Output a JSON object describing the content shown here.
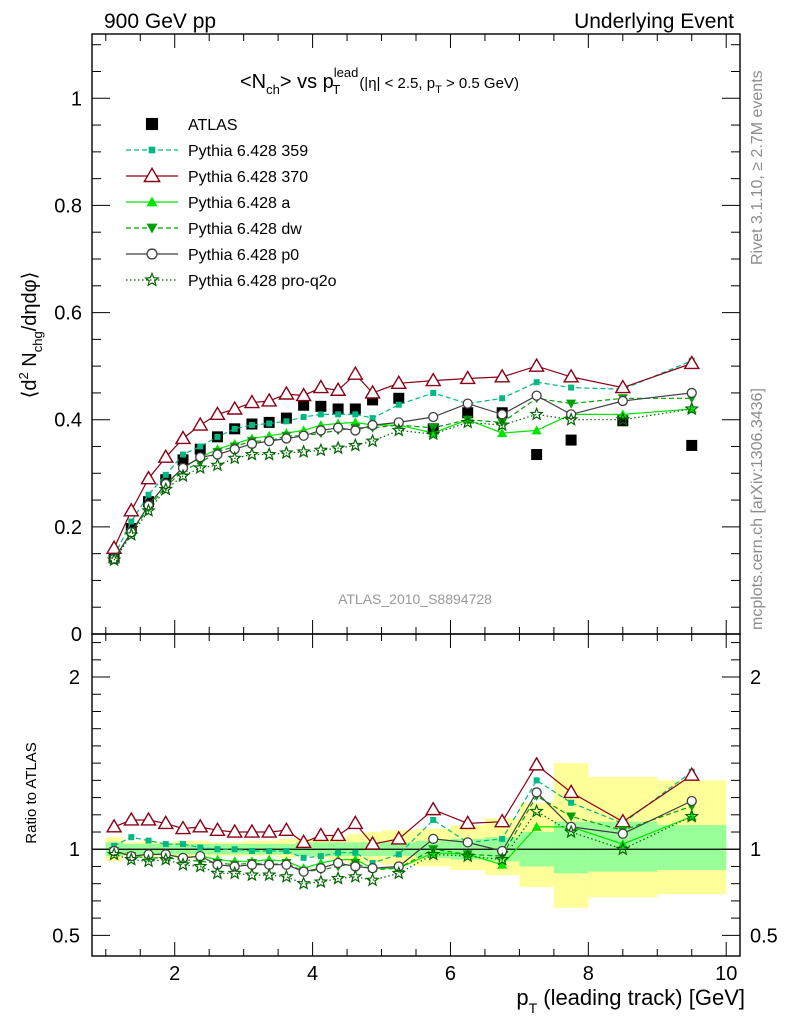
{
  "header": {
    "left": "900 GeV pp",
    "right": "Underlying Event",
    "side_top": "Rivet 3.1.10, ≥ 2.7M events",
    "side_bottom": "mcplots.cern.ch [arXiv:1306.3436]"
  },
  "main": {
    "title_lhs": "<N",
    "title_ch": "ch",
    "title_vs": "> vs p",
    "title_sup": "lead",
    "title_T": "T",
    "title_cut1": "(|η| < 2.5, p",
    "title_cutT": "T",
    "title_cut2": " > 0.5 GeV)",
    "ylabel_pre": "⟨d",
    "ylabel_sup": "2",
    "ylabel_mid": " N",
    "ylabel_sub": "chg",
    "ylabel_post": "/dηdφ⟩",
    "watermark": "ATLAS_2010_S8894728"
  },
  "ratio": {
    "ylabel": "Ratio to ATLAS"
  },
  "xaxis": {
    "label_p": "p",
    "label_T": "T",
    "label_rest": " (leading track) [GeV]"
  },
  "chart_data": [
    {
      "type": "scatter",
      "panel": "main",
      "xlim": [
        0.8,
        10.2
      ],
      "ylim": [
        0,
        1.12
      ],
      "yticks": [
        0,
        0.2,
        0.4,
        0.6,
        0.8,
        1
      ],
      "ytick_labels": [
        "0",
        "0.2",
        "0.4",
        "0.6",
        "0.8",
        "1"
      ],
      "xticks": [
        2,
        4,
        6,
        8,
        10
      ],
      "xtick_labels": [
        "2",
        "4",
        "6",
        "8",
        "10"
      ],
      "x": [
        1.12,
        1.37,
        1.62,
        1.87,
        2.12,
        2.37,
        2.62,
        2.87,
        3.12,
        3.37,
        3.62,
        3.87,
        4.12,
        4.37,
        4.62,
        4.87,
        5.25,
        5.75,
        6.25,
        6.75,
        7.25,
        7.75,
        8.5,
        9.5
      ],
      "legend_position": "top-left",
      "series": [
        {
          "name": "ATLAS",
          "color": "#000000",
          "marker": "square",
          "line": "none",
          "values": [
            0.142,
            0.197,
            0.247,
            0.288,
            0.325,
            0.345,
            0.368,
            0.383,
            0.392,
            0.395,
            0.403,
            0.427,
            0.425,
            0.42,
            0.42,
            0.437,
            0.44,
            0.383,
            0.413,
            0.413,
            0.335,
            0.362,
            0.398,
            0.352
          ]
        },
        {
          "name": "Pythia 6.428 359",
          "color": "#00b982",
          "marker": "square-small",
          "line": "dashed",
          "values": [
            0.145,
            0.21,
            0.26,
            0.297,
            0.335,
            0.35,
            0.368,
            0.383,
            0.39,
            0.393,
            0.397,
            0.405,
            0.41,
            0.41,
            0.41,
            0.403,
            0.428,
            0.45,
            0.43,
            0.44,
            0.47,
            0.46,
            0.457,
            0.51
          ]
        },
        {
          "name": "Pythia 6.428 370",
          "color": "#8b0016",
          "marker": "triangle-open",
          "line": "solid",
          "values": [
            0.16,
            0.23,
            0.29,
            0.33,
            0.365,
            0.39,
            0.41,
            0.42,
            0.432,
            0.435,
            0.448,
            0.445,
            0.46,
            0.455,
            0.485,
            0.45,
            0.468,
            0.473,
            0.477,
            0.48,
            0.5,
            0.48,
            0.46,
            0.505
          ]
        },
        {
          "name": "Pythia 6.428 a",
          "color": "#00e600",
          "marker": "triangle",
          "line": "solid",
          "values": [
            0.14,
            0.19,
            0.24,
            0.28,
            0.31,
            0.33,
            0.345,
            0.355,
            0.365,
            0.37,
            0.375,
            0.38,
            0.39,
            0.393,
            0.395,
            0.39,
            0.39,
            0.375,
            0.4,
            0.375,
            0.38,
            0.41,
            0.41,
            0.42
          ]
        },
        {
          "name": "Pythia 6.428 dw",
          "color": "#00a000",
          "marker": "triangle-down",
          "line": "dashed",
          "values": [
            0.14,
            0.19,
            0.235,
            0.275,
            0.305,
            0.32,
            0.34,
            0.35,
            0.36,
            0.36,
            0.37,
            0.37,
            0.375,
            0.38,
            0.385,
            0.385,
            0.39,
            0.385,
            0.4,
            0.395,
            0.44,
            0.43,
            0.44,
            0.44
          ]
        },
        {
          "name": "Pythia 6.428 p0",
          "color": "#404040",
          "marker": "circle-open",
          "line": "solid",
          "values": [
            0.14,
            0.19,
            0.24,
            0.28,
            0.31,
            0.33,
            0.335,
            0.345,
            0.355,
            0.36,
            0.365,
            0.37,
            0.38,
            0.385,
            0.38,
            0.39,
            0.395,
            0.405,
            0.43,
            0.41,
            0.445,
            0.41,
            0.435,
            0.45
          ]
        },
        {
          "name": "Pythia 6.428 pro-q2o",
          "color": "#006400",
          "marker": "star",
          "line": "dotted",
          "values": [
            0.138,
            0.185,
            0.23,
            0.27,
            0.295,
            0.31,
            0.315,
            0.328,
            0.335,
            0.335,
            0.338,
            0.34,
            0.343,
            0.347,
            0.352,
            0.36,
            0.38,
            0.373,
            0.395,
            0.39,
            0.41,
            0.4,
            0.4,
            0.42
          ]
        }
      ]
    },
    {
      "type": "line",
      "panel": "ratio",
      "xlim": [
        0.8,
        10.2
      ],
      "ylim": [
        0.38,
        2.25
      ],
      "yticks": [
        0.5,
        1,
        2
      ],
      "ytick_labels": [
        "0.5",
        "1",
        "2"
      ],
      "reference_line": 1,
      "band_edges": [
        1.0,
        1.25,
        1.5,
        1.75,
        2.0,
        2.25,
        2.5,
        2.75,
        3.0,
        3.25,
        3.5,
        3.75,
        4.0,
        4.25,
        4.5,
        4.75,
        5.0,
        5.5,
        6.0,
        6.5,
        7.0,
        7.5,
        8.0,
        9.0,
        10.0
      ],
      "band_inner": {
        "color": "#99ff99",
        "lo": [
          0.96,
          0.97,
          0.97,
          0.97,
          0.97,
          0.97,
          0.97,
          0.97,
          0.97,
          0.97,
          0.97,
          0.96,
          0.96,
          0.96,
          0.96,
          0.96,
          0.96,
          0.95,
          0.94,
          0.93,
          0.9,
          0.86,
          0.87,
          0.88
        ],
        "hi": [
          1.04,
          1.03,
          1.03,
          1.03,
          1.03,
          1.03,
          1.03,
          1.03,
          1.03,
          1.03,
          1.03,
          1.04,
          1.04,
          1.04,
          1.04,
          1.04,
          1.04,
          1.05,
          1.06,
          1.07,
          1.1,
          1.16,
          1.16,
          1.14
        ]
      },
      "band_outer": {
        "color": "#ffff99",
        "lo": [
          0.93,
          0.96,
          0.95,
          0.96,
          0.95,
          0.95,
          0.96,
          0.96,
          0.96,
          0.96,
          0.95,
          0.96,
          0.95,
          0.94,
          0.92,
          0.92,
          0.91,
          0.9,
          0.88,
          0.85,
          0.78,
          0.66,
          0.72,
          0.74
        ],
        "hi": [
          1.07,
          1.04,
          1.05,
          1.04,
          1.05,
          1.05,
          1.04,
          1.04,
          1.05,
          1.05,
          1.06,
          1.06,
          1.06,
          1.07,
          1.09,
          1.1,
          1.11,
          1.12,
          1.14,
          1.18,
          1.27,
          1.5,
          1.42,
          1.4
        ]
      },
      "x": [
        1.12,
        1.37,
        1.62,
        1.87,
        2.12,
        2.37,
        2.62,
        2.87,
        3.12,
        3.37,
        3.62,
        3.87,
        4.12,
        4.37,
        4.62,
        4.87,
        5.25,
        5.75,
        6.25,
        6.75,
        7.25,
        7.75,
        8.5,
        9.5
      ],
      "series": [
        {
          "name": "Pythia 6.428 359",
          "color": "#00b982",
          "marker": "square-small",
          "line": "dashed",
          "values": [
            1.02,
            1.07,
            1.05,
            1.03,
            1.03,
            1.01,
            1.0,
            1.0,
            0.99,
            0.99,
            0.99,
            0.95,
            0.96,
            0.98,
            0.98,
            0.92,
            0.97,
            1.17,
            1.04,
            1.06,
            1.4,
            1.27,
            1.15,
            1.45
          ]
        },
        {
          "name": "Pythia 6.428 370",
          "color": "#8b0016",
          "marker": "triangle-open",
          "line": "solid",
          "values": [
            1.13,
            1.17,
            1.17,
            1.15,
            1.12,
            1.13,
            1.11,
            1.1,
            1.1,
            1.1,
            1.11,
            1.04,
            1.08,
            1.08,
            1.15,
            1.03,
            1.06,
            1.23,
            1.15,
            1.16,
            1.49,
            1.33,
            1.16,
            1.43
          ]
        },
        {
          "name": "Pythia 6.428 a",
          "color": "#00e600",
          "marker": "triangle",
          "line": "solid",
          "values": [
            0.99,
            0.96,
            0.97,
            0.97,
            0.95,
            0.96,
            0.94,
            0.93,
            0.93,
            0.94,
            0.93,
            0.89,
            0.92,
            0.94,
            0.94,
            0.89,
            0.89,
            0.98,
            0.97,
            0.91,
            1.13,
            1.13,
            1.03,
            1.19
          ]
        },
        {
          "name": "Pythia 6.428 dw",
          "color": "#00a000",
          "marker": "triangle-down",
          "line": "dashed",
          "values": [
            0.99,
            0.96,
            0.95,
            0.95,
            0.94,
            0.93,
            0.92,
            0.91,
            0.92,
            0.91,
            0.92,
            0.87,
            0.88,
            0.9,
            0.92,
            0.88,
            0.89,
            1.0,
            0.97,
            0.96,
            1.31,
            1.19,
            1.11,
            1.25
          ]
        },
        {
          "name": "Pythia 6.428 p0",
          "color": "#404040",
          "marker": "circle-open",
          "line": "solid",
          "values": [
            0.99,
            0.96,
            0.97,
            0.97,
            0.95,
            0.96,
            0.91,
            0.9,
            0.91,
            0.91,
            0.91,
            0.87,
            0.89,
            0.92,
            0.9,
            0.89,
            0.9,
            1.06,
            1.04,
            0.99,
            1.33,
            1.13,
            1.09,
            1.28
          ]
        },
        {
          "name": "Pythia 6.428 pro-q2o",
          "color": "#006400",
          "marker": "star",
          "line": "dotted",
          "values": [
            0.97,
            0.94,
            0.93,
            0.94,
            0.91,
            0.9,
            0.86,
            0.86,
            0.85,
            0.85,
            0.84,
            0.8,
            0.81,
            0.83,
            0.84,
            0.82,
            0.86,
            0.97,
            0.96,
            0.94,
            1.22,
            1.1,
            1.0,
            1.19
          ]
        }
      ]
    }
  ]
}
